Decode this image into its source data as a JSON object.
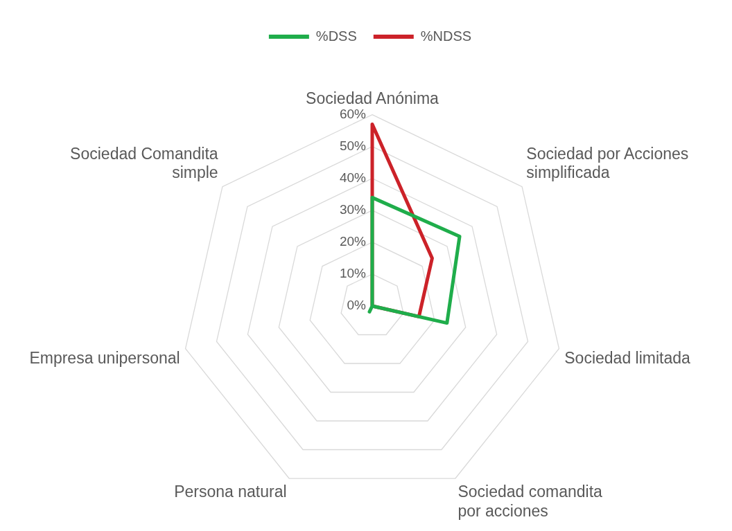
{
  "chart_data": {
    "type": "radar",
    "categories": [
      "Sociedad Anónima",
      "Sociedad por Acciones simplificada",
      "Sociedad limitada",
      "Sociedad comandita por acciones",
      "Persona natural",
      "Empresa unipersonal",
      "Sociedad Comandita simple"
    ],
    "series": [
      {
        "name": "%DSS",
        "color": "#1fad4b",
        "values": [
          34,
          35,
          24,
          0,
          2,
          0,
          0
        ]
      },
      {
        "name": "%NDSS",
        "color": "#cc2229",
        "values": [
          57,
          24,
          15,
          0,
          0,
          0,
          0
        ]
      }
    ],
    "ylim": [
      0,
      60
    ],
    "yticks": [
      {
        "value": 0,
        "label": "0%"
      },
      {
        "value": 10,
        "label": "10%"
      },
      {
        "value": 20,
        "label": "20%"
      },
      {
        "value": 30,
        "label": "30%"
      },
      {
        "value": 40,
        "label": "40%"
      },
      {
        "value": 50,
        "label": "50%"
      },
      {
        "value": 60,
        "label": "60%"
      }
    ],
    "grid": true,
    "legend": "top",
    "marker": "none"
  }
}
